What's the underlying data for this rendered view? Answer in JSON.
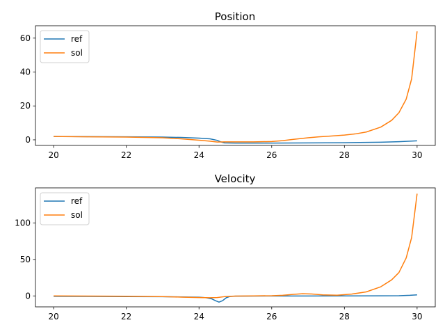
{
  "colors": {
    "ref": "#1f77b4",
    "sol": "#ff7f0e"
  },
  "chart_data": [
    {
      "type": "line",
      "title": "Position",
      "xlabel": "",
      "ylabel": "",
      "xlim": [
        19.5,
        30.5
      ],
      "ylim": [
        -3.3,
        67.3
      ],
      "xticks": [
        20,
        22,
        24,
        26,
        28,
        30
      ],
      "yticks": [
        0,
        20,
        40,
        60
      ],
      "grid": false,
      "legend": "upper left",
      "series": [
        {
          "name": "ref",
          "x": [
            20,
            21,
            22,
            23,
            23.5,
            24,
            24.3,
            24.5,
            24.6,
            24.7,
            25,
            25.5,
            26,
            27,
            28,
            29,
            29.5,
            30
          ],
          "y": [
            2.0,
            1.9,
            1.8,
            1.6,
            1.4,
            1.0,
            0.6,
            -0.3,
            -1.2,
            -1.8,
            -1.9,
            -1.9,
            -1.9,
            -1.8,
            -1.7,
            -1.4,
            -1.1,
            -0.6
          ]
        },
        {
          "name": "sol",
          "x": [
            20,
            21,
            22,
            23,
            23.5,
            24,
            24.3,
            24.5,
            24.7,
            25,
            25.5,
            26,
            26.3,
            26.6,
            27,
            27.3,
            27.6,
            28,
            28.3,
            28.6,
            29,
            29.3,
            29.5,
            29.7,
            29.85,
            30
          ],
          "y": [
            2.0,
            1.8,
            1.6,
            1.2,
            0.6,
            -0.2,
            -0.8,
            -1.3,
            -1.2,
            -1.2,
            -1.2,
            -1.0,
            -0.5,
            0.3,
            1.2,
            1.8,
            2.2,
            2.8,
            3.5,
            4.6,
            7.5,
            11.5,
            16.0,
            24.0,
            36.0,
            64.0
          ]
        }
      ]
    },
    {
      "type": "line",
      "title": "Velocity",
      "xlabel": "",
      "ylabel": "",
      "xlim": [
        19.5,
        30.5
      ],
      "ylim": [
        -15,
        148
      ],
      "xticks": [
        20,
        22,
        24,
        26,
        28,
        30
      ],
      "yticks": [
        0,
        50,
        100
      ],
      "grid": false,
      "legend": "upper left",
      "series": [
        {
          "name": "ref",
          "x": [
            20,
            21,
            22,
            23,
            23.5,
            24,
            24.2,
            24.35,
            24.45,
            24.55,
            24.65,
            24.75,
            24.85,
            25,
            25.5,
            26,
            27,
            28,
            29,
            29.5,
            29.8,
            30
          ],
          "y": [
            -0.6,
            -0.7,
            -0.9,
            -1.1,
            -1.4,
            -1.8,
            -2.5,
            -4.0,
            -6.5,
            -8.5,
            -6.5,
            -2.5,
            -0.8,
            -0.4,
            -0.2,
            -0.1,
            -0.1,
            0.0,
            0.1,
            0.3,
            0.8,
            1.5
          ]
        },
        {
          "name": "sol",
          "x": [
            20,
            21,
            22,
            23,
            23.5,
            24,
            24.3,
            24.5,
            24.7,
            25,
            25.5,
            26,
            26.3,
            26.6,
            26.85,
            27.1,
            27.4,
            27.8,
            28.2,
            28.6,
            29,
            29.3,
            29.5,
            29.7,
            29.85,
            30
          ],
          "y": [
            0.0,
            -0.2,
            -0.5,
            -1.0,
            -1.6,
            -2.2,
            -2.5,
            -2.2,
            -1.0,
            -0.2,
            0.0,
            0.3,
            0.9,
            2.2,
            3.0,
            2.6,
            1.4,
            1.0,
            2.5,
            5.5,
            12.5,
            22.0,
            32.0,
            52.0,
            80.0,
            140.0
          ]
        }
      ]
    }
  ]
}
